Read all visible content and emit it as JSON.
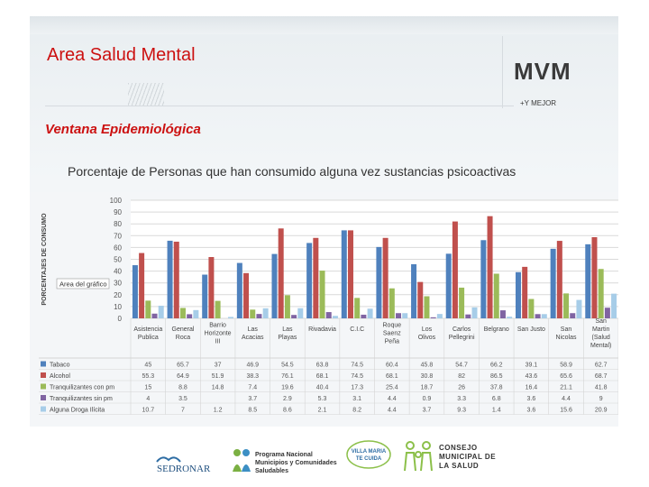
{
  "slide": {
    "title": "Area Salud Mental",
    "subtitle": "Ventana Epidemiológica",
    "logo_text": "MVM",
    "logo_tagline": "+Y MEJOR"
  },
  "chart_data": {
    "type": "bar",
    "title": "Porcentaje de Personas que han consumido alguna vez sustancias psicoactivas",
    "ylabel": "PORCENTAJES DE CONSUMO",
    "ylim": [
      0,
      100
    ],
    "yticks": [
      0,
      10,
      20,
      30,
      40,
      50,
      60,
      70,
      80,
      90,
      100
    ],
    "grid": true,
    "annotation": "Area del gráfico",
    "categories": [
      [
        "Asistencia",
        "Publica"
      ],
      [
        "General",
        "Roca"
      ],
      [
        "Barrio",
        "Horizonte",
        "III"
      ],
      [
        "Las",
        "Acacias"
      ],
      [
        "Las",
        "Playas"
      ],
      [
        "Rivadavia"
      ],
      [
        "C.I.C"
      ],
      [
        "Roque",
        "Saenz",
        "Peña"
      ],
      [
        "Los",
        "Olivos"
      ],
      [
        "Carlos",
        "Pellegrini"
      ],
      [
        "Belgrano"
      ],
      [
        "San Justo"
      ],
      [
        "San",
        "Nicolas"
      ],
      [
        "San",
        "Martin",
        "(Salud",
        "Mental)"
      ]
    ],
    "series": [
      {
        "name": "Tabaco",
        "color": "#4f81bd",
        "values": [
          45,
          65.7,
          37,
          46.9,
          54.5,
          63.8,
          74.5,
          60.4,
          45.8,
          54.7,
          66.2,
          39.1,
          58.9,
          62.7
        ],
        "labels": [
          "45",
          "65.7",
          "37",
          "46.9",
          "54.5",
          "63.8",
          "74.5",
          "60.4",
          "45.8",
          "54.7",
          "66.2",
          "39.1",
          "58.9",
          "62.7"
        ]
      },
      {
        "name": "Alcohol",
        "color": "#c0504d",
        "values": [
          55.3,
          64.9,
          51.9,
          38.3,
          76.1,
          68.1,
          74.5,
          68.1,
          30.8,
          82,
          86.5,
          43.6,
          65.6,
          68.7
        ],
        "labels": [
          "55.3",
          "64.9",
          "51.9",
          "38.3",
          "76.1",
          "68.1",
          "74.5",
          "68.1",
          "30.8",
          "82",
          "86.5",
          "43.6",
          "65.6",
          "68.7"
        ]
      },
      {
        "name": "Tranquilizantes con pm",
        "color": "#9bbb59",
        "values": [
          15,
          8.8,
          14.8,
          7.4,
          19.6,
          40.4,
          17.3,
          25.4,
          18.7,
          26,
          37.8,
          16.4,
          21.1,
          41.8
        ],
        "labels": [
          "15",
          "8.8",
          "14.8",
          "7.4",
          "19.6",
          "40.4",
          "17.3",
          "25.4",
          "18.7",
          "26",
          "37.8",
          "16.4",
          "21.1",
          "41.8"
        ]
      },
      {
        "name": "Tranquilizantes sin pm",
        "color": "#8064a2",
        "values": [
          4,
          3.5,
          null,
          3.7,
          2.9,
          5.3,
          3.1,
          4.4,
          0.9,
          3.3,
          6.8,
          3.6,
          4.4,
          9
        ],
        "labels": [
          "4",
          "3.5",
          "",
          "3.7",
          "2.9",
          "5.3",
          "3.1",
          "4.4",
          "0.9",
          "3.3",
          "6.8",
          "3.6",
          "4.4",
          "9"
        ]
      },
      {
        "name": "Alguna Droga Ilícita",
        "color": "#a7cde8",
        "values": [
          10.7,
          7,
          1.2,
          8.5,
          8.6,
          2.1,
          8.2,
          4.4,
          3.7,
          9.3,
          1.4,
          3.6,
          15.6,
          20.9
        ],
        "labels": [
          "10.7",
          "7",
          "1.2",
          "8.5",
          "8.6",
          "2.1",
          "8.2",
          "4.4",
          "3.7",
          "9.3",
          "1.4",
          "3.6",
          "15.6",
          "20.9"
        ]
      }
    ]
  },
  "footer": {
    "sedronar": "SEDRONAR",
    "programa": "Programa Nacional Municipios y Comunidades Saludables",
    "te_cuida": "VILLA MARIA TE CUIDA",
    "consejo": "CONSEJO MUNICIPAL DE LA SALUD"
  }
}
